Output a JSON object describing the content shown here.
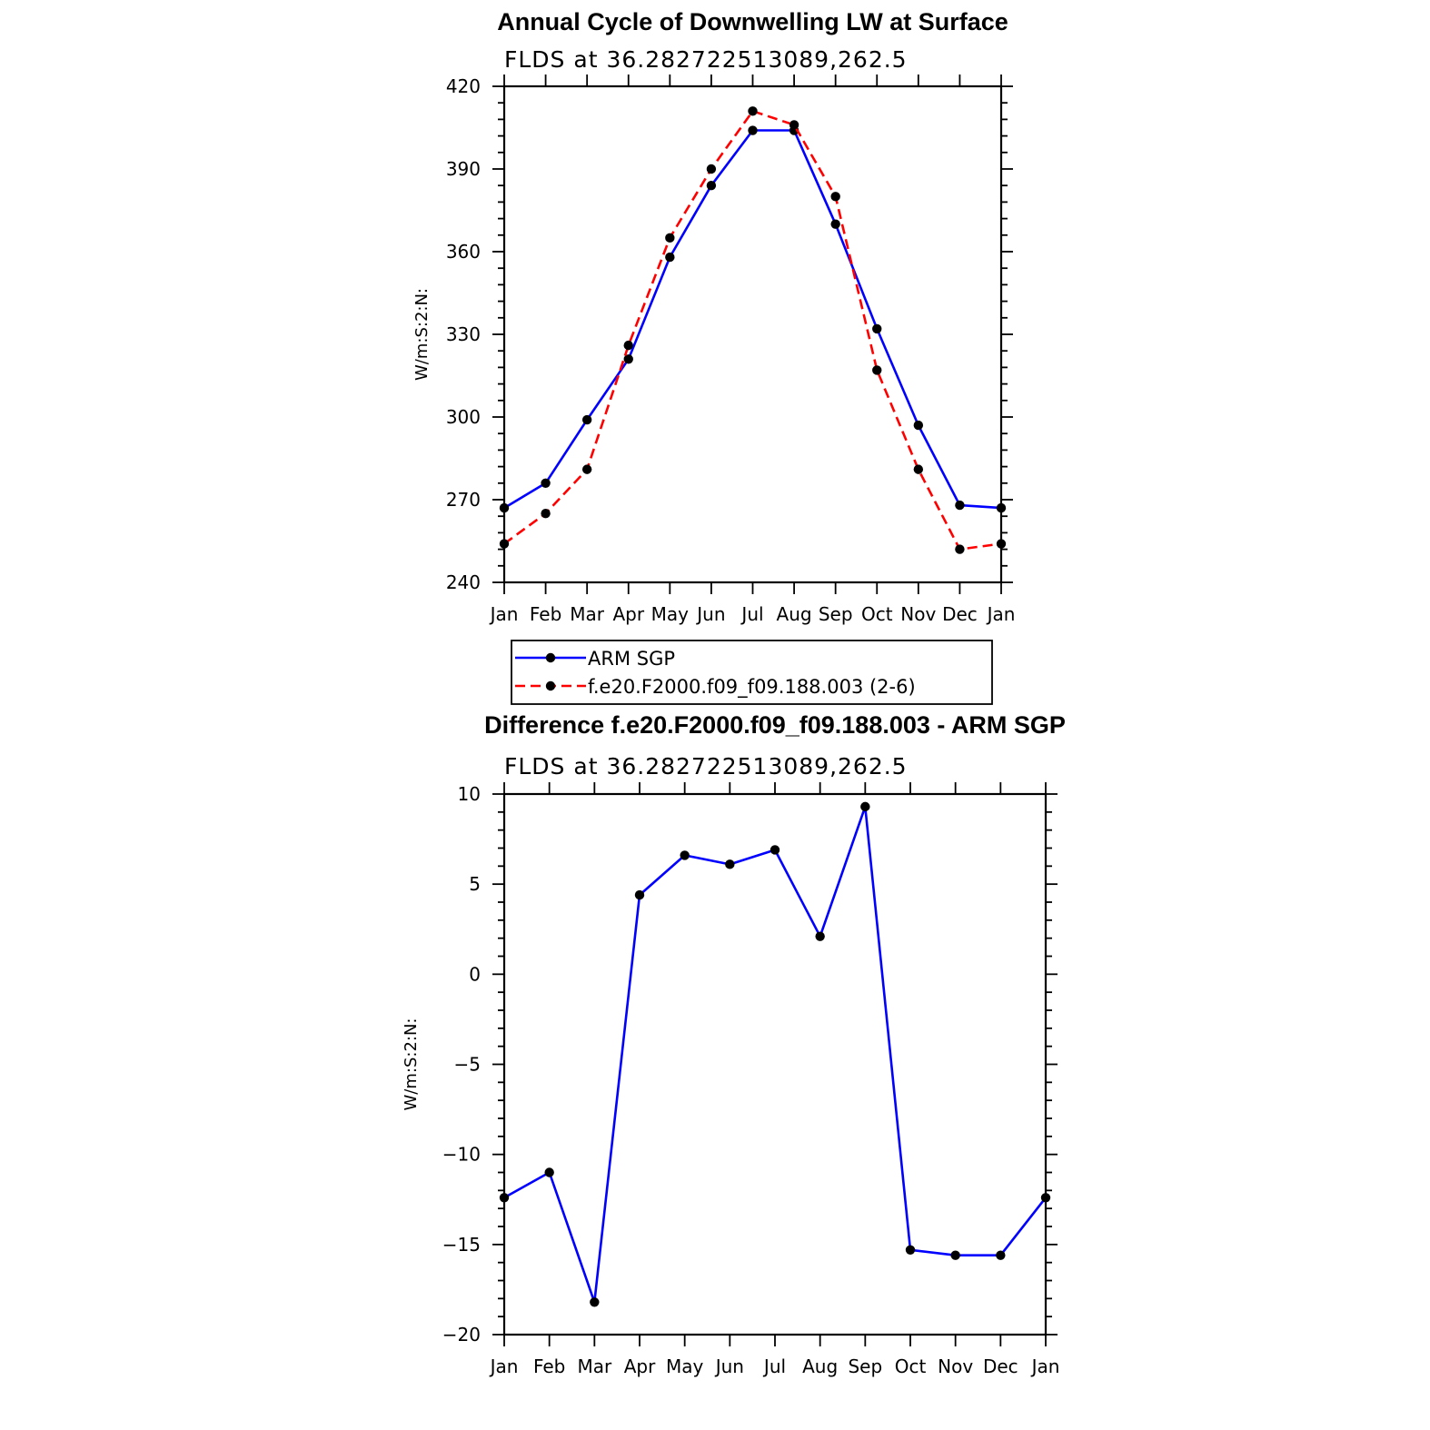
{
  "chart_data": [
    {
      "type": "line",
      "title": "Annual Cycle of Downwelling LW at Surface",
      "subtitle": "FLDS at 36.282722513089,262.5",
      "ylabel": "W/m:S:2:N:",
      "xlabel": "",
      "categories": [
        "Jan",
        "Feb",
        "Mar",
        "Apr",
        "May",
        "Jun",
        "Jul",
        "Aug",
        "Sep",
        "Oct",
        "Nov",
        "Dec",
        "Jan"
      ],
      "ylim": [
        240,
        420
      ],
      "yticks": [
        240,
        270,
        300,
        330,
        360,
        390,
        420
      ],
      "series": [
        {
          "name": "ARM SGP",
          "color": "#0000ff",
          "dash": "solid",
          "values": [
            267,
            276,
            299,
            321,
            358,
            384,
            404,
            404,
            370,
            332,
            297,
            268,
            267
          ]
        },
        {
          "name": "f.e20.F2000.f09_f09.188.003 (2-6)",
          "color": "#ff0000",
          "dash": "dashed",
          "values": [
            254,
            265,
            281,
            326,
            365,
            390,
            411,
            406,
            380,
            317,
            281,
            252,
            254
          ]
        }
      ],
      "legend": "bottom"
    },
    {
      "type": "line",
      "title": "Difference f.e20.F2000.f09_f09.188.003 - ARM SGP",
      "subtitle": "FLDS at 36.282722513089,262.5",
      "ylabel": "W/m:S:2:N:",
      "xlabel": "",
      "categories": [
        "Jan",
        "Feb",
        "Mar",
        "Apr",
        "May",
        "Jun",
        "Jul",
        "Aug",
        "Sep",
        "Oct",
        "Nov",
        "Dec",
        "Jan"
      ],
      "ylim": [
        -20,
        10
      ],
      "yticks": [
        -20,
        -15,
        -10,
        -5,
        0,
        5,
        10
      ],
      "ytick_labels": [
        "−20",
        "−15",
        "−10",
        "−5",
        "0",
        "5",
        "10"
      ],
      "series": [
        {
          "color": "#0000ff",
          "dash": "solid",
          "values": [
            -12.4,
            -11,
            -18.2,
            4.4,
            6.6,
            6.1,
            6.9,
            2.1,
            9.3,
            -15.3,
            -15.6,
            -15.6,
            -12.4
          ]
        }
      ]
    }
  ]
}
